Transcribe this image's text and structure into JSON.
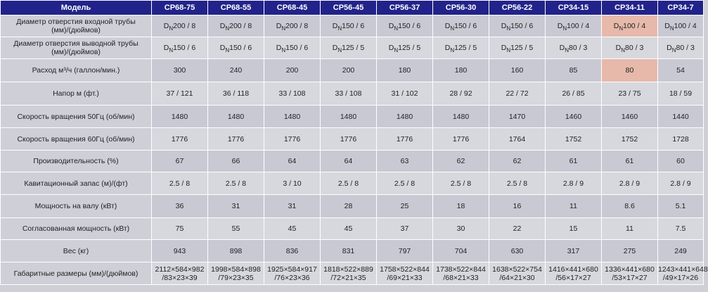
{
  "header": {
    "model_label": "Модель",
    "models": [
      "CP68-75",
      "CP68-55",
      "CP68-45",
      "CP56-45",
      "CP56-37",
      "CP56-30",
      "CP56-22",
      "CP34-15",
      "CP34-11",
      "CP34-7"
    ]
  },
  "dn_letter": "D",
  "dn_sub": "N",
  "rows": [
    {
      "label": "Диаметр отверстия входной трубы\n(мм)/(дюймов)",
      "dn": true,
      "values": [
        "200 / 8",
        "200 / 8",
        "200 / 8",
        "150 / 6",
        "150 / 6",
        "150 / 6",
        "150 / 6",
        "100 / 4",
        "100 / 4",
        "100 / 4"
      ]
    },
    {
      "label": "Диаметр отверстия выводной трубы\n(мм)/(дюймов)",
      "dn": true,
      "values": [
        "150 / 6",
        "150 / 6",
        "150 / 6",
        "125 / 5",
        "125 / 5",
        "125 / 5",
        "125 / 5",
        "80 / 3",
        "80 / 3",
        "80 / 3"
      ]
    },
    {
      "label": "Расход м³/ч (галлон/мин.)",
      "values": [
        "300",
        "240",
        "200",
        "200",
        "180",
        "180",
        "160",
        "85",
        "80",
        "54"
      ]
    },
    {
      "label": "Напор м (фт.)",
      "values": [
        "37 / 121",
        "36 / 118",
        "33 / 108",
        "33 / 108",
        "31 / 102",
        "28 / 92",
        "22 / 72",
        "26 / 85",
        "23 / 75",
        "18 / 59"
      ]
    },
    {
      "label": "Скорость вращения 50Гц (об/мин)",
      "values": [
        "1480",
        "1480",
        "1480",
        "1480",
        "1480",
        "1480",
        "1470",
        "1460",
        "1460",
        "1440"
      ]
    },
    {
      "label": "Скорость вращения 60Гц (об/мин)",
      "values": [
        "1776",
        "1776",
        "1776",
        "1776",
        "1776",
        "1776",
        "1764",
        "1752",
        "1752",
        "1728"
      ]
    },
    {
      "label": "Производительность (%)",
      "values": [
        "67",
        "66",
        "64",
        "64",
        "63",
        "62",
        "62",
        "61",
        "61",
        "60"
      ]
    },
    {
      "label": "Кавитационный запас (м)/(фт)",
      "values": [
        "2.5 / 8",
        "2.5 / 8",
        "3 / 10",
        "2.5 / 8",
        "2.5 / 8",
        "2.5 / 8",
        "2.5 / 8",
        "2.8 / 9",
        "2.8 / 9",
        "2.8 / 9"
      ]
    },
    {
      "label": "Мощность на валу (кВт)",
      "values": [
        "36",
        "31",
        "31",
        "28",
        "25",
        "18",
        "16",
        "11",
        "8.6",
        "5.1"
      ]
    },
    {
      "label": "Согласованная мощность (кВт)",
      "values": [
        "75",
        "55",
        "45",
        "45",
        "37",
        "30",
        "22",
        "15",
        "11",
        "7.5"
      ]
    },
    {
      "label": "Вес (кг)",
      "values": [
        "943",
        "898",
        "836",
        "831",
        "797",
        "704",
        "630",
        "317",
        "275",
        "249"
      ]
    },
    {
      "label": "Габаритные размеры (мм)/(дюймов)",
      "values": [
        "2112×584×982\n/83×23×39",
        "1998×584×898\n/79×23×35",
        "1925×584×917\n/76×23×36",
        "1818×522×889\n/72×21×35",
        "1758×522×844\n/69×21×33",
        "1738×522×844\n/68×21×33",
        "1638×522×754\n/64×21×30",
        "1416×441×680\n/56×17×27",
        "1336×441×680\n/53×17×27",
        "1243×441×648\n/49×17×26"
      ]
    }
  ],
  "highlight_column": 8,
  "colors": {
    "header_bg": "#22238a",
    "highlight": "#e6b9ab",
    "cell_bg": "#cfcfd8"
  }
}
